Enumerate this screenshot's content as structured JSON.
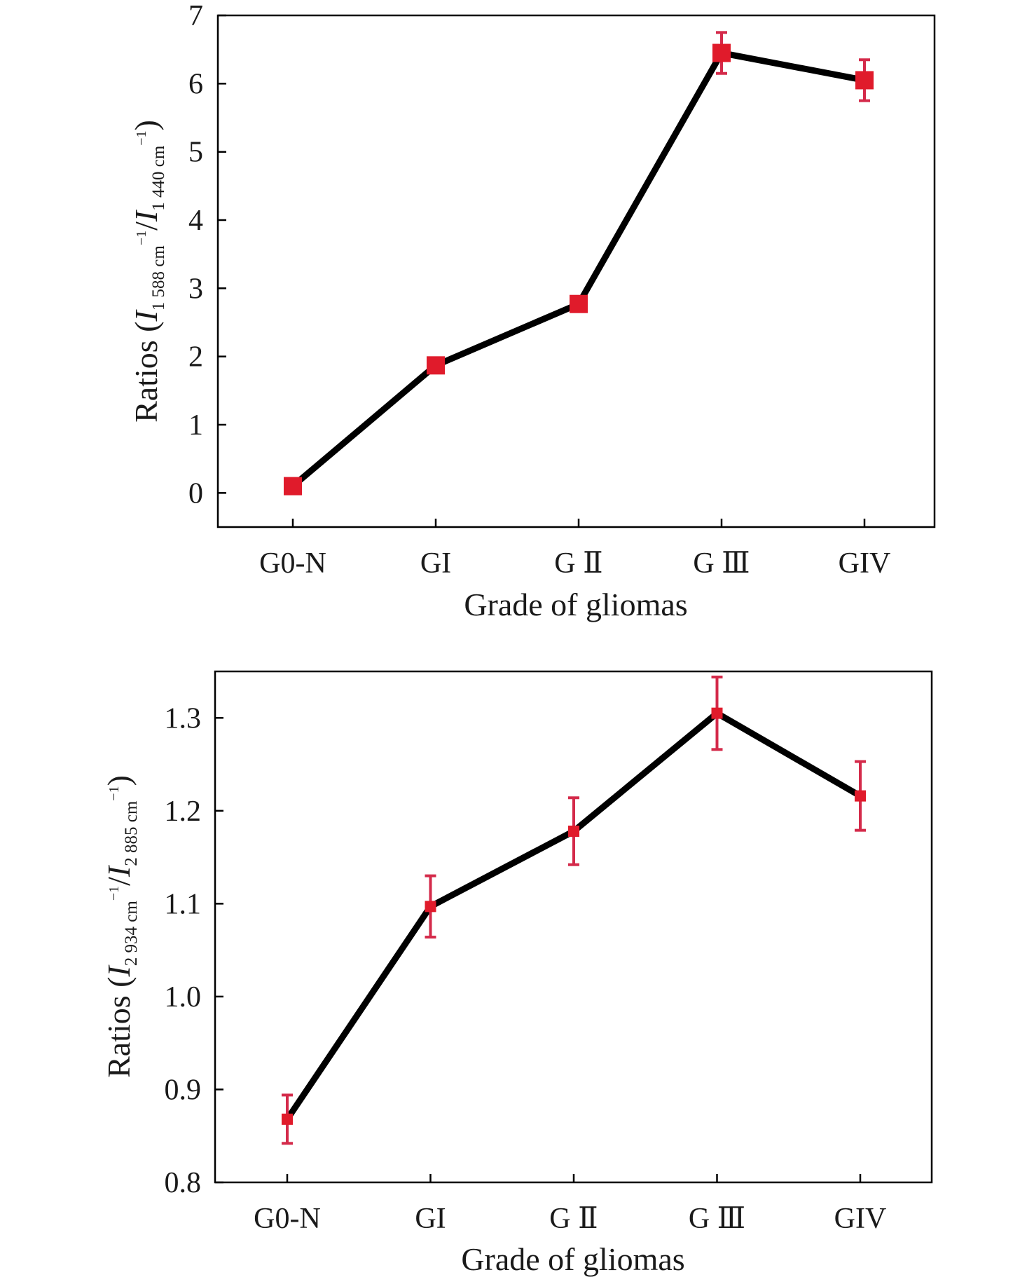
{
  "chart_data": [
    {
      "type": "line",
      "categories": [
        "G0-N",
        "GI",
        "GⅡ",
        "GⅢ",
        "GIV"
      ],
      "x_tick_labels": [
        "G0-N",
        "GI",
        "G Ⅱ",
        "G Ⅲ",
        "GIV"
      ],
      "series": [
        {
          "values": [
            0.1,
            1.87,
            2.77,
            6.45,
            6.05
          ],
          "errors": [
            0.0,
            0.0,
            0.0,
            0.3,
            0.3
          ]
        }
      ],
      "xlabel": "Grade of gliomas",
      "ylabel_parts": {
        "prefix": "Ratios (",
        "i1": "I",
        "sub1": "1 588 cm",
        "sup1": "−1",
        "slash": "/",
        "i2": "I",
        "sub2": "1 440 cm",
        "sup2": "−1",
        "suffix": ")"
      },
      "ylim": [
        -0.5,
        7
      ],
      "yticks": [
        0,
        1,
        2,
        3,
        4,
        5,
        6,
        7
      ],
      "ytick_labels": [
        "0",
        "1",
        "2",
        "3",
        "4",
        "5",
        "6",
        "7"
      ],
      "grid": false,
      "line_color": "#000000",
      "marker_color": "#e01b2b",
      "error_color": "#d42a4a"
    },
    {
      "type": "line",
      "categories": [
        "G0-N",
        "GI",
        "GⅡ",
        "GⅢ",
        "GIV"
      ],
      "x_tick_labels": [
        "G0-N",
        "GI",
        "G Ⅱ",
        "G Ⅲ",
        "GIV"
      ],
      "series": [
        {
          "values": [
            0.868,
            1.097,
            1.178,
            1.305,
            1.216
          ],
          "errors": [
            0.026,
            0.033,
            0.036,
            0.039,
            0.037
          ]
        }
      ],
      "xlabel": "Grade of gliomas",
      "ylabel_parts": {
        "prefix": "Ratios (",
        "i1": "I",
        "sub1": "2 934 cm",
        "sup1": "−1",
        "slash": "/",
        "i2": "I",
        "sub2": "2 885 cm",
        "sup2": "−1",
        "suffix": ")"
      },
      "ylim": [
        0.8,
        1.35
      ],
      "yticks": [
        0.8,
        0.9,
        1.0,
        1.1,
        1.2,
        1.3
      ],
      "ytick_labels": [
        "0.8",
        "0.9",
        "1.0",
        "1.1",
        "1.2",
        "1.3"
      ],
      "grid": false,
      "line_color": "#000000",
      "marker_color": "#e01b2b",
      "error_color": "#d42a4a"
    }
  ]
}
